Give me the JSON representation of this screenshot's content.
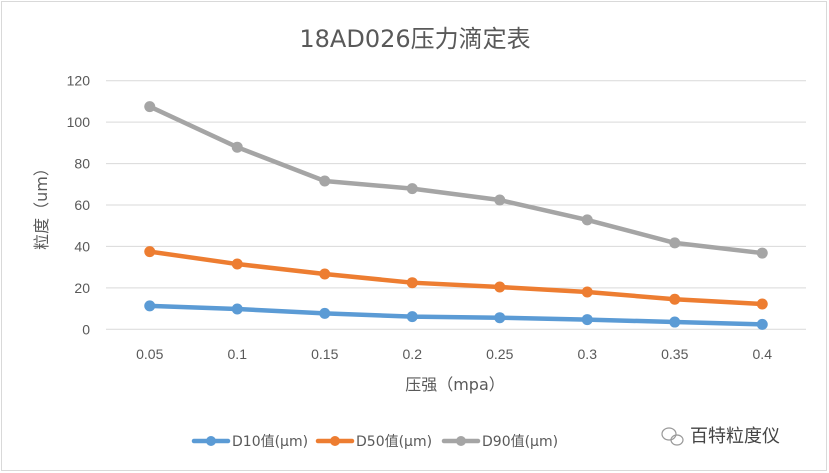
{
  "chart_data": {
    "type": "line",
    "title": "18AD026压力滴定表",
    "xlabel": "压强（mpa）",
    "ylabel": "粒度（um）",
    "categories": [
      "0.05",
      "0.1",
      "0.15",
      "0.2",
      "0.25",
      "0.3",
      "0.35",
      "0.4"
    ],
    "ylim": [
      0,
      120
    ],
    "yticks": [
      "0",
      "20",
      "40",
      "60",
      "80",
      "100",
      "120"
    ],
    "grid": true,
    "legend_position": "bottom",
    "series": [
      {
        "name": "D10值(μm)",
        "color": "#5b9bd5",
        "values": [
          11.3,
          9.8,
          7.7,
          6.1,
          5.6,
          4.7,
          3.5,
          2.4
        ]
      },
      {
        "name": "D50值(μm)",
        "color": "#ed7d31",
        "values": [
          37.5,
          31.5,
          26.7,
          22.5,
          20.4,
          18.0,
          14.5,
          12.2
        ]
      },
      {
        "name": "D90值(μm)",
        "color": "#a5a5a5",
        "values": [
          107.5,
          87.9,
          71.6,
          67.9,
          62.4,
          52.8,
          41.7,
          36.8
        ]
      }
    ]
  },
  "watermark": {
    "text": "百特粒度仪",
    "icon": "wechat-icon"
  }
}
